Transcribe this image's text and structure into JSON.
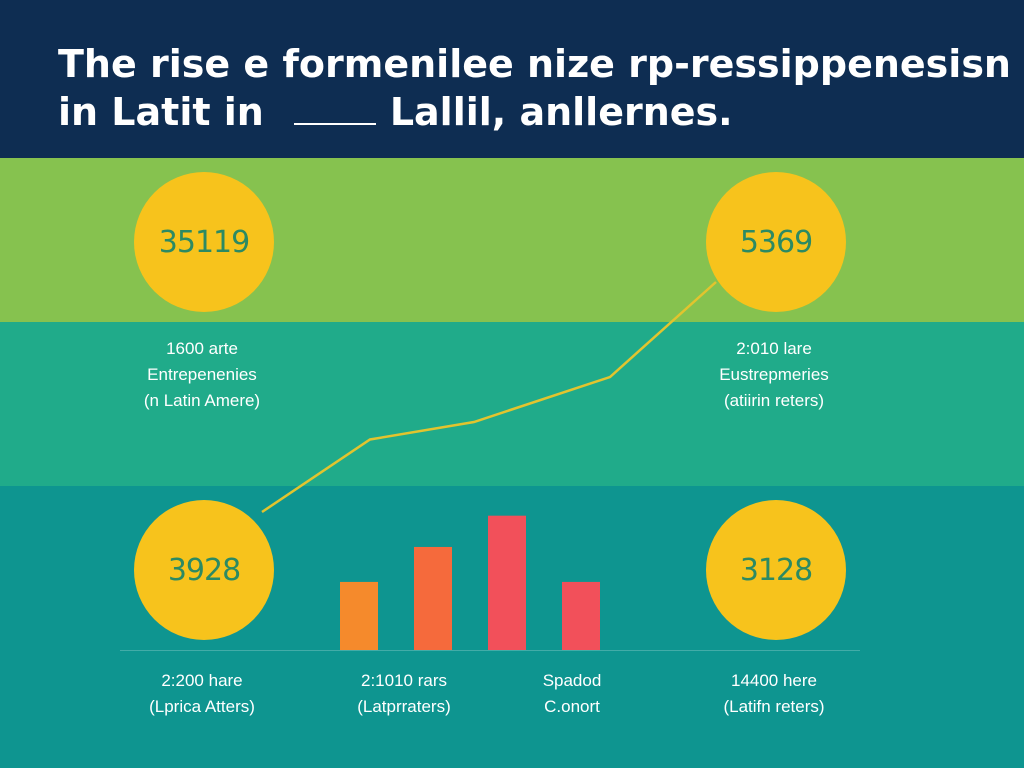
{
  "header": {
    "title_line1": "The rise e formenilee nize rp-ressippenesisn",
    "title_line2a": "in Latit in",
    "title_line2b": "Lallil, anllernes."
  },
  "circles": {
    "top_left": "35119",
    "top_right": "5369",
    "bottom_left": "3928",
    "bottom_right": "3128"
  },
  "captions": {
    "top_left": [
      "1600 arte",
      "Entrepenenies",
      "(n Latin Amere)"
    ],
    "top_right": [
      "2:010 lare",
      "Eustrepmeries",
      "(atiirin reters)"
    ],
    "bottom_left": [
      "2:200 hare",
      "(Lprica Atters)"
    ],
    "bottom_mid_left": [
      "2:1010 rars",
      "(Latprraters)"
    ],
    "bottom_mid_right": [
      "Spadod",
      "C.onort"
    ],
    "bottom_right": [
      "14400 here",
      "(Latifn reters)"
    ]
  },
  "chart_data": {
    "type": "bar",
    "values": [
      0.37,
      0.56,
      0.73,
      0.37
    ],
    "colors": [
      "#f58a2c",
      "#f56a3c",
      "#f2505a",
      "#f2505a"
    ]
  },
  "trend_line": {
    "color": "#e2c42e",
    "values": [
      0.08,
      0.37,
      0.44,
      0.62,
      1.0
    ]
  },
  "colors": {
    "header": "#0e2d52",
    "green_band": "#86c24f",
    "teal_band": "#20ab8a",
    "deep_band": "#0e9590",
    "circle": "#f7c31c",
    "circle_text": "#2c8a63"
  }
}
